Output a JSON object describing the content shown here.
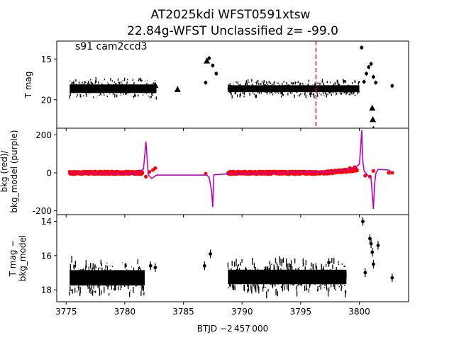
{
  "title_line1": "AT2025kdi  WFST0591xtsw",
  "title_line2": "22.84g-WFST Unclassified z= -99.0",
  "panel_note": "s91 cam2ccd3",
  "xlabel": "BTJD −2 457 000",
  "colors": {
    "flux": "#000000",
    "bkg": "#ff0000",
    "model": "#bf00bf",
    "marker": "#d62728"
  },
  "chart_data": [
    {
      "type": "scatter",
      "panel": "T mag",
      "ylabel": "T mag",
      "ylim": [
        23.5,
        12.8
      ],
      "inverted_y": true,
      "xlim": [
        3774.2,
        3804.2
      ],
      "yticks": [
        15,
        20
      ],
      "xticks": [
        3775,
        3780,
        3785,
        3790,
        3795,
        3800
      ],
      "vline_x": 3796.3,
      "series": [
        {
          "kind": "band",
          "segments": [
            {
              "x0": 3775.3,
              "x1": 3782.7,
              "ymin": 17.6,
              "ymax": 19.7
            },
            {
              "x0": 3788.8,
              "x1": 3800.0,
              "ymin": 17.8,
              "ymax": 19.5
            }
          ]
        },
        {
          "kind": "points",
          "x": [
            3786.9,
            3800.2,
            3800.4,
            3800.6,
            3800.8,
            3801.0,
            3801.2,
            3801.4,
            3802.8,
            3787.2,
            3787.5,
            3787.8
          ],
          "y": [
            17.9,
            13.6,
            17.8,
            16.8,
            16.0,
            15.6,
            17.2,
            17.9,
            18.3,
            14.9,
            15.8,
            16.8
          ]
        },
        {
          "kind": "triangles",
          "x": [
            3782.6,
            3784.5,
            3787.0,
            3801.1,
            3801.15,
            3801.2
          ],
          "y": [
            18.2,
            18.7,
            15.2,
            21.0,
            22.4,
            23.6
          ]
        }
      ]
    },
    {
      "type": "line",
      "panel": "background",
      "ylabel": "bkg (red)/ bkg_model (purple)",
      "ylim": [
        -220,
        235
      ],
      "xlim": [
        3774.2,
        3804.2
      ],
      "yticks": [
        -200,
        0,
        200
      ],
      "model": {
        "x": [
          3775.3,
          3781.0,
          3781.6,
          3781.8,
          3782.0,
          3782.3,
          3782.7,
          3787.0,
          3787.2,
          3787.4,
          3787.5,
          3787.6,
          3788.8,
          3797.5,
          3799.5,
          3800.0,
          3800.1,
          3800.2,
          3800.3,
          3800.4,
          3800.6,
          3801.0,
          3801.1,
          3801.2,
          3801.3,
          3801.4,
          3801.6,
          3802.5,
          3802.8
        ],
        "y": [
          0,
          -3,
          20,
          165,
          -10,
          -30,
          -12,
          -12,
          -25,
          -95,
          -180,
          -10,
          -5,
          5,
          20,
          45,
          120,
          225,
          60,
          10,
          -5,
          -30,
          -105,
          -190,
          -60,
          -5,
          18,
          15,
          0
        ]
      },
      "bkg_segments": [
        {
          "x0": 3775.3,
          "x1": 3781.5,
          "y": 0
        },
        {
          "x0": 3788.8,
          "x1": 3799.8,
          "y": 0
        }
      ],
      "bkg_points": {
        "x": [
          3781.8,
          3782.1,
          3782.4,
          3782.6,
          3786.9,
          3799.2,
          3799.6,
          3800.5,
          3800.9,
          3801.2,
          3802.5,
          3802.8
        ],
        "y": [
          -20,
          5,
          15,
          25,
          -5,
          25,
          30,
          -15,
          -20,
          10,
          0,
          0
        ]
      }
    },
    {
      "type": "scatter",
      "panel": "T mag minus bkg_model",
      "ylabel": "T mag − bkg_model",
      "ylim": [
        18.7,
        13.6
      ],
      "inverted_y": true,
      "xlim": [
        3774.2,
        3804.2
      ],
      "yticks": [
        14,
        16,
        18
      ],
      "series": [
        {
          "kind": "band",
          "segments": [
            {
              "x0": 3775.3,
              "x1": 3781.7,
              "ymin": 16.4,
              "ymax": 18.2
            },
            {
              "x0": 3788.8,
              "x1": 3798.9,
              "ymin": 16.4,
              "ymax": 18.1
            }
          ]
        },
        {
          "kind": "points",
          "x": [
            3782.2,
            3782.6,
            3786.8,
            3787.3,
            3797.4,
            3800.3,
            3800.5,
            3800.9,
            3801.0,
            3801.1,
            3801.2,
            3801.6,
            3802.8
          ],
          "y": [
            16.6,
            16.7,
            16.6,
            15.9,
            16.4,
            14.0,
            17.0,
            15.0,
            15.3,
            15.8,
            16.5,
            15.4,
            17.3
          ]
        }
      ]
    }
  ]
}
